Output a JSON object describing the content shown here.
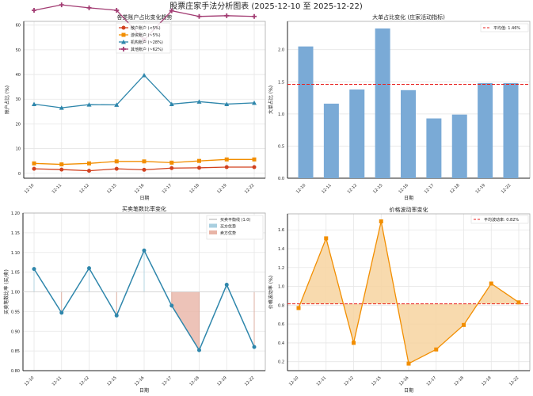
{
  "title": "股票庄家手法分析图表 (2025-12-10 至 2025-12-22)",
  "chart_data": [
    {
      "type": "line",
      "title": "各类账户占比变化趋势",
      "xlabel": "日期",
      "ylabel": "账户占比 (%)",
      "x": [
        "12-10",
        "12-11",
        "12-12",
        "12-15",
        "12-16",
        "12-17",
        "12-18",
        "12-19",
        "12-22"
      ],
      "ylim": [
        -2,
        61.5
      ],
      "yticks": [
        0,
        10,
        20,
        30,
        40,
        50,
        60
      ],
      "ytick_labels": [
        "0",
        "10",
        "20",
        "30",
        "40",
        "50",
        "60"
      ],
      "grid": true,
      "legend_position": "top-center",
      "series": [
        {
          "name": "散户账户 (<5%)",
          "color": "#d2411f",
          "marker": "circle",
          "values": [
            1.8,
            1.5,
            1.0,
            1.8,
            1.4,
            2.1,
            2.2,
            2.5,
            2.5
          ]
        },
        {
          "name": "游资账户 (~5%)",
          "color": "#f28e00",
          "marker": "square",
          "values": [
            4.0,
            3.6,
            4.0,
            4.8,
            4.8,
            4.3,
            5.0,
            5.6,
            5.6
          ]
        },
        {
          "name": "机构账户 (~28%)",
          "color": "#2e86ab",
          "marker": "triangle",
          "values": [
            28.0,
            26.5,
            27.8,
            27.7,
            39.7,
            28.0,
            29.0,
            28.0,
            28.5
          ]
        },
        {
          "name": "其他账户 (~62%)",
          "color": "#a23b72",
          "marker": "plus",
          "values": [
            66.0,
            68.2,
            67.0,
            66.0,
            54.0,
            65.8,
            63.5,
            63.8,
            63.5
          ]
        }
      ]
    },
    {
      "type": "bar",
      "title": "大单占比变化 (庄家活动指标)",
      "xlabel": "日期",
      "ylabel": "大单占比 (%)",
      "categories": [
        "12-10",
        "12-11",
        "12-12",
        "12-15",
        "12-16",
        "12-17",
        "12-18",
        "12-19",
        "12-22"
      ],
      "values": [
        2.05,
        1.16,
        1.38,
        2.33,
        1.37,
        0.93,
        0.99,
        1.48,
        1.48
      ],
      "color": "#7aaad6",
      "ylim": [
        0,
        2.44
      ],
      "yticks": [
        0,
        0.5,
        1.0,
        1.5,
        2.0
      ],
      "ytick_labels": [
        "0.0",
        "0.5",
        "1.0",
        "1.5",
        "2.0"
      ],
      "mean_line": {
        "value": 1.46,
        "label": "平均值: 1.46%",
        "color": "#e8211f"
      },
      "legend_position": "top-right",
      "grid": true
    },
    {
      "type": "line",
      "title": "买卖笔数比率变化",
      "xlabel": "日期",
      "ylabel": "买卖笔数比率 (买/卖)",
      "x": [
        "12-10",
        "12-11",
        "12-12",
        "12-15",
        "12-16",
        "12-17",
        "12-18",
        "12-19",
        "12-22"
      ],
      "values": [
        1.058,
        0.947,
        1.06,
        0.94,
        1.105,
        0.965,
        0.852,
        1.018,
        0.86
      ],
      "color": "#2e86ab",
      "ylim": [
        0.8,
        1.2
      ],
      "yticks": [
        0.8,
        0.85,
        0.9,
        0.95,
        1.0,
        1.05,
        1.1,
        1.15,
        1.2
      ],
      "ytick_labels": [
        "0.80",
        "0.85",
        "0.90",
        "0.95",
        "1.00",
        "1.05",
        "1.10",
        "1.15",
        "1.20"
      ],
      "baseline": 1.0,
      "legend": [
        {
          "label": "买卖平衡线 (1.0)",
          "color": "#999999",
          "kind": "line"
        },
        {
          "label": "买方优势",
          "color": "#a9cfe0",
          "kind": "patch"
        },
        {
          "label": "卖方优势",
          "color": "#e8b4a6",
          "kind": "patch"
        }
      ],
      "legend_position": "top-right",
      "grid": true
    },
    {
      "type": "area",
      "title": "价格波动率变化",
      "xlabel": "日期",
      "ylabel": "价格波动率 (%)",
      "x": [
        "12-10",
        "12-11",
        "12-12",
        "12-15",
        "12-16",
        "12-17",
        "12-18",
        "12-19",
        "12-22"
      ],
      "values": [
        0.77,
        1.51,
        0.4,
        1.69,
        0.18,
        0.33,
        0.59,
        1.03,
        0.83
      ],
      "color": "#f28e00",
      "fill_color": "#f7d3a0",
      "ylim": [
        0.105,
        1.77
      ],
      "yticks": [
        0.2,
        0.4,
        0.6,
        0.8,
        1.0,
        1.2,
        1.4,
        1.6
      ],
      "ytick_labels": [
        "0.2",
        "0.4",
        "0.6",
        "0.8",
        "1.0",
        "1.2",
        "1.4",
        "1.6"
      ],
      "mean_line": {
        "value": 0.815,
        "label": "平均波动率: 0.82%",
        "color": "#e8211f"
      },
      "legend_position": "top-right",
      "grid": true
    }
  ]
}
